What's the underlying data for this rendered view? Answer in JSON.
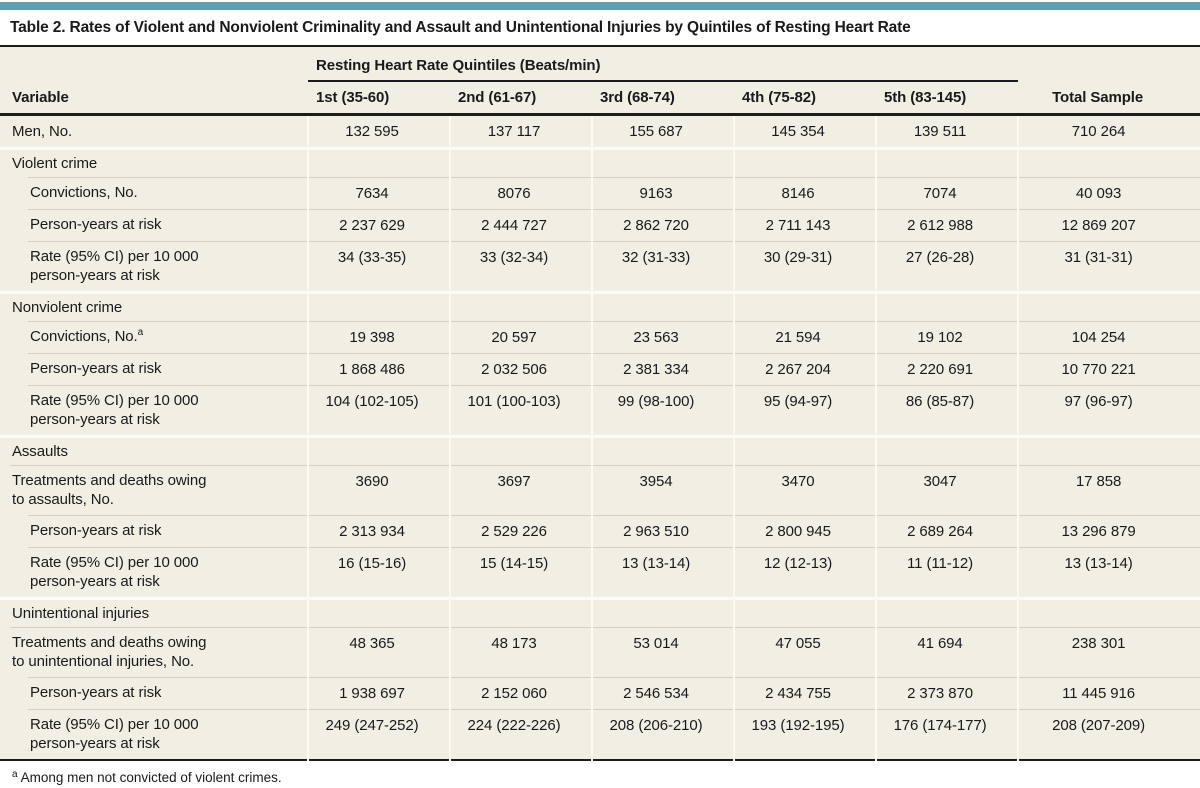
{
  "colors": {
    "accent_bar": "#5e9fb0",
    "table_background": "#f1eee3",
    "rule_dark": "#1c1c1c"
  },
  "title": "Table 2. Rates of Violent and Nonviolent Criminality and Assault and Unintentional Injuries by Quintiles of Resting Heart Rate",
  "table": {
    "group_header": "Resting Heart Rate Quintiles (Beats/min)",
    "columns": [
      "Variable",
      "1st (35-60)",
      "2nd (61-67)",
      "3rd (68-74)",
      "4th (75-82)",
      "5th (83-145)",
      "Total Sample"
    ],
    "rows": [
      {
        "type": "data",
        "indent": false,
        "label": "Men, No.",
        "values": [
          "132 595",
          "137 117",
          "155 687",
          "145 354",
          "139 511",
          "710 264"
        ]
      },
      {
        "type": "section",
        "label": "Violent crime",
        "values": [
          "",
          "",
          "",
          "",
          "",
          ""
        ]
      },
      {
        "type": "data",
        "indent": true,
        "label": "Convictions, No.",
        "values": [
          "7634",
          "8076",
          "9163",
          "8146",
          "7074",
          "40 093"
        ]
      },
      {
        "type": "data",
        "indent": true,
        "label": "Person-years at risk",
        "values": [
          "2 237 629",
          "2 444 727",
          "2 862 720",
          "2 711 143",
          "2 612 988",
          "12 869 207"
        ]
      },
      {
        "type": "data",
        "indent": true,
        "label": "Rate (95% CI) per 10 000 person-years at risk",
        "values": [
          "34 (33-35)",
          "33 (32-34)",
          "32 (31-33)",
          "30 (29-31)",
          "27 (26-28)",
          "31 (31-31)"
        ]
      },
      {
        "type": "section",
        "label": "Nonviolent crime",
        "values": [
          "",
          "",
          "",
          "",
          "",
          ""
        ]
      },
      {
        "type": "data",
        "indent": true,
        "label": "Convictions, No.",
        "sup": "a",
        "values": [
          "19 398",
          "20 597",
          "23 563",
          "21 594",
          "19 102",
          "104 254"
        ]
      },
      {
        "type": "data",
        "indent": true,
        "label": "Person-years at risk",
        "values": [
          "1 868 486",
          "2 032 506",
          "2 381 334",
          "2 267 204",
          "2 220 691",
          "10 770 221"
        ]
      },
      {
        "type": "data",
        "indent": true,
        "label": "Rate (95% CI) per 10 000 person-years at risk",
        "values": [
          "104 (102-105)",
          "101 (100-103)",
          "99 (98-100)",
          "95 (94-97)",
          "86 (85-87)",
          "97 (96-97)"
        ]
      },
      {
        "type": "section",
        "label": "Assaults",
        "values": [
          "",
          "",
          "",
          "",
          "",
          ""
        ]
      },
      {
        "type": "data",
        "indent": false,
        "label": "Treatments and deaths owing to assaults, No.",
        "values": [
          "3690",
          "3697",
          "3954",
          "3470",
          "3047",
          "17 858"
        ]
      },
      {
        "type": "data",
        "indent": true,
        "label": "Person-years at risk",
        "values": [
          "2 313 934",
          "2 529 226",
          "2 963 510",
          "2 800 945",
          "2 689 264",
          "13 296 879"
        ]
      },
      {
        "type": "data",
        "indent": true,
        "label": "Rate (95% CI) per 10 000 person-years at risk",
        "values": [
          "16 (15-16)",
          "15 (14-15)",
          "13 (13-14)",
          "12 (12-13)",
          "11 (11-12)",
          "13 (13-14)"
        ]
      },
      {
        "type": "section",
        "label": "Unintentional injuries",
        "values": [
          "",
          "",
          "",
          "",
          "",
          ""
        ]
      },
      {
        "type": "data",
        "indent": false,
        "label": "Treatments and deaths owing to unintentional injuries, No.",
        "values": [
          "48 365",
          "48 173",
          "53 014",
          "47 055",
          "41 694",
          "238 301"
        ]
      },
      {
        "type": "data",
        "indent": true,
        "label": "Person-years at risk",
        "values": [
          "1 938 697",
          "2 152 060",
          "2 546 534",
          "2 434 755",
          "2 373 870",
          "11 445 916"
        ]
      },
      {
        "type": "data",
        "indent": true,
        "label": "Rate (95% CI) per 10 000 person-years at risk",
        "values": [
          "249 (247-252)",
          "224 (222-226)",
          "208 (206-210)",
          "193 (192-195)",
          "176 (174-177)",
          "208 (207-209)"
        ]
      }
    ]
  },
  "footnote": {
    "marker": "a",
    "text": "Among men not convicted of violent crimes."
  }
}
